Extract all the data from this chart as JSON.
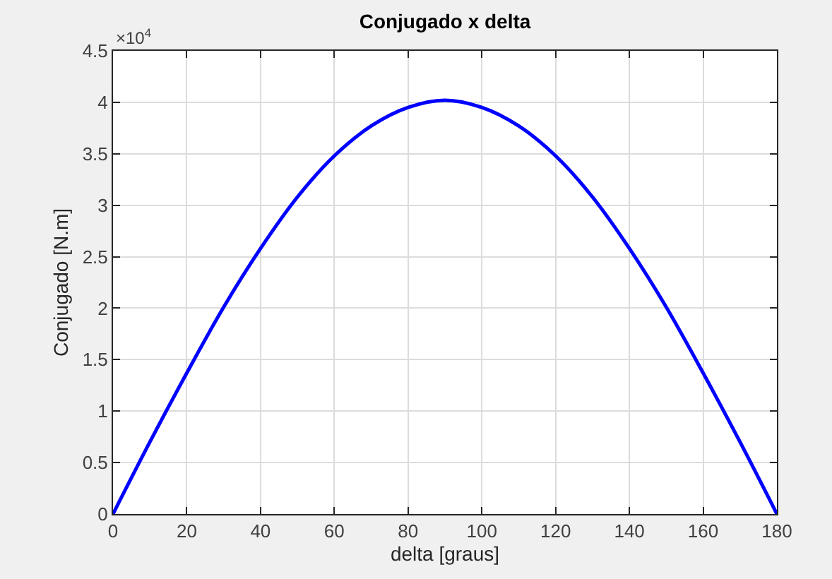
{
  "chart_data": {
    "type": "line",
    "title": "Conjugado x delta",
    "xlabel": "delta [graus]",
    "ylabel": "Conjugado [N.m]",
    "annotations": [
      "×10$^{4}$"
    ],
    "x": [
      0,
      10,
      20,
      30,
      40,
      50,
      60,
      70,
      80,
      90,
      100,
      110,
      120,
      130,
      140,
      150,
      160,
      170,
      180
    ],
    "series": [
      {
        "color": "#0000ff",
        "values": [
          0,
          0.7,
          1.37,
          2.01,
          2.58,
          3.08,
          3.48,
          3.77,
          3.95,
          4.02,
          3.95,
          3.77,
          3.48,
          3.08,
          2.58,
          2.01,
          1.37,
          0.7,
          0
        ]
      }
    ],
    "xlim": [
      0,
      180
    ],
    "xticks": [
      0,
      20,
      40,
      60,
      80,
      100,
      120,
      140,
      160,
      180
    ],
    "ylim": [
      0,
      4.5
    ],
    "yticks": [
      0,
      0.5,
      1,
      1.5,
      2,
      2.5,
      3,
      3.5,
      4,
      4.5
    ],
    "grid": true,
    "marker": "none",
    "line_style": "solid"
  }
}
